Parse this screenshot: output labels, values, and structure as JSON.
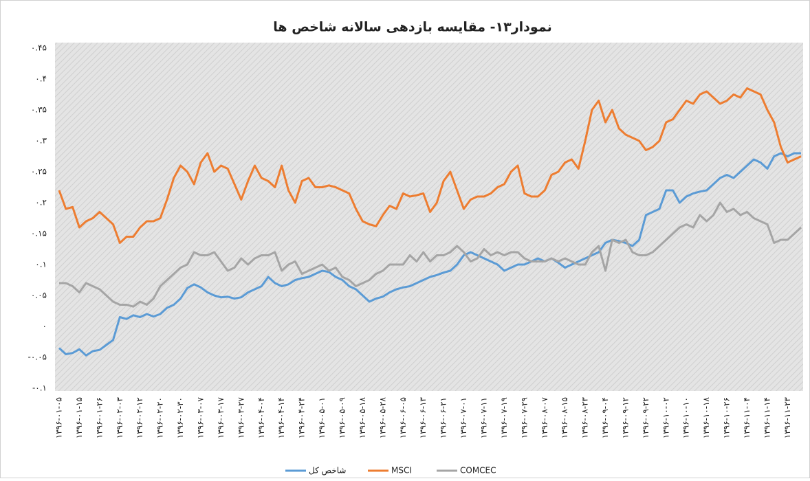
{
  "chart_data": {
    "type": "line",
    "title": "نمودار۱۳- مقایسه بازدهی سالانه شاخص ها",
    "categories": [
      "۱۳۹۶-۰۱-۰۵",
      null,
      null,
      "۱۳۹۶-۰۱-۱۵",
      null,
      null,
      "۱۳۹۶-۰۱-۲۶",
      null,
      null,
      "۱۳۹۶-۰۲-۰۳",
      null,
      null,
      "۱۳۹۶-۰۲-۱۲",
      null,
      null,
      "۱۳۹۶-۰۲-۲۰",
      null,
      null,
      "۱۳۹۶-۰۲-۳۰",
      null,
      null,
      "۱۳۹۶-۰۳-۰۷",
      null,
      null,
      "۱۳۹۶-۰۳-۱۷",
      null,
      null,
      "۱۳۹۶-۰۳-۲۷",
      null,
      null,
      "۱۳۹۶-۰۴-۰۴",
      null,
      null,
      "۱۳۹۶-۰۴-۱۴",
      null,
      null,
      "۱۳۹۶-۰۴-۲۴",
      null,
      null,
      "۱۳۹۶-۰۵-۰۱",
      null,
      null,
      "۱۳۹۶-۰۵-۰۹",
      null,
      null,
      "۱۳۹۶-۰۵-۱۸",
      null,
      null,
      "۱۳۹۶-۰۵-۲۸",
      null,
      null,
      "۱۳۹۶-۰۶-۰۵",
      null,
      null,
      "۱۳۹۶-۰۶-۱۳",
      null,
      null,
      "۱۳۹۶-۰۶-۲۱",
      null,
      null,
      "۱۳۹۶-۰۷-۰۱",
      null,
      null,
      "۱۳۹۶-۰۷-۱۱",
      null,
      null,
      "۱۳۹۶-۰۷-۱۹",
      null,
      null,
      "۱۳۹۶-۰۷-۲۹",
      null,
      null,
      "۱۳۹۶-۰۸-۰۷",
      null,
      null,
      "۱۳۹۶-۰۸-۱۵",
      null,
      null,
      "۱۳۹۶-۰۸-۲۳",
      null,
      null,
      "۱۳۹۶-۰۹-۰۴",
      null,
      null,
      "۱۳۹۶-۰۹-۱۲",
      null,
      null,
      "۱۳۹۶-۰۹-۲۲",
      null,
      null,
      "۱۳۹۶-۱۰-۰۲",
      null,
      null,
      "۱۳۹۶-۱۰-۱۰",
      null,
      null,
      "۱۳۹۶-۱۰-۱۸",
      null,
      null,
      "۱۳۹۶-۱۰-۲۶",
      null,
      null,
      "۱۳۹۶-۱۱-۰۴",
      null,
      null,
      "۱۳۹۶-۱۱-۱۴",
      null,
      null,
      "۱۳۹۶-۱۱-۲۳",
      null,
      null
    ],
    "series": [
      {
        "name": "شاخص کل",
        "color": "#5b9bd5",
        "values": [
          -0.035,
          -0.045,
          -0.043,
          -0.037,
          -0.047,
          -0.04,
          -0.038,
          -0.03,
          -0.022,
          0.015,
          0.012,
          0.018,
          0.015,
          0.02,
          0.016,
          0.02,
          0.03,
          0.035,
          0.045,
          0.062,
          0.068,
          0.063,
          0.055,
          0.05,
          0.047,
          0.048,
          0.045,
          0.047,
          0.055,
          0.06,
          0.065,
          0.08,
          0.07,
          0.065,
          0.068,
          0.075,
          0.078,
          0.08,
          0.085,
          0.09,
          0.088,
          0.08,
          0.075,
          0.065,
          0.06,
          0.05,
          0.04,
          0.045,
          0.048,
          0.055,
          0.06,
          0.063,
          0.065,
          0.07,
          0.075,
          0.08,
          0.083,
          0.087,
          0.09,
          0.1,
          0.115,
          0.12,
          0.115,
          0.11,
          0.105,
          0.1,
          0.09,
          0.095,
          0.1,
          0.1,
          0.105,
          0.11,
          0.105,
          0.11,
          0.103,
          0.095,
          0.1,
          0.105,
          0.11,
          0.115,
          0.12,
          0.135,
          0.14,
          0.138,
          0.135,
          0.13,
          0.14,
          0.18,
          0.185,
          0.19,
          0.22,
          0.22,
          0.2,
          0.21,
          0.215,
          0.218,
          0.22,
          0.23,
          0.24,
          0.245,
          0.24,
          0.25,
          0.26,
          0.27,
          0.265,
          0.255,
          0.275,
          0.28,
          0.275,
          0.28,
          0.28
        ]
      },
      {
        "name": "MSCI",
        "color": "#ed7d31",
        "values": [
          0.22,
          0.19,
          0.193,
          0.16,
          0.17,
          0.175,
          0.185,
          0.175,
          0.165,
          0.135,
          0.145,
          0.145,
          0.16,
          0.17,
          0.17,
          0.175,
          0.205,
          0.24,
          0.26,
          0.25,
          0.23,
          0.265,
          0.28,
          0.25,
          0.26,
          0.255,
          0.23,
          0.205,
          0.235,
          0.26,
          0.24,
          0.235,
          0.225,
          0.26,
          0.22,
          0.2,
          0.235,
          0.24,
          0.225,
          0.225,
          0.228,
          0.225,
          0.22,
          0.215,
          0.19,
          0.17,
          0.165,
          0.162,
          0.18,
          0.195,
          0.19,
          0.215,
          0.21,
          0.212,
          0.215,
          0.185,
          0.2,
          0.235,
          0.25,
          0.22,
          0.19,
          0.205,
          0.21,
          0.21,
          0.215,
          0.225,
          0.23,
          0.25,
          0.26,
          0.215,
          0.21,
          0.21,
          0.22,
          0.245,
          0.25,
          0.265,
          0.27,
          0.255,
          0.3,
          0.35,
          0.365,
          0.33,
          0.35,
          0.32,
          0.31,
          0.305,
          0.3,
          0.285,
          0.29,
          0.3,
          0.33,
          0.335,
          0.35,
          0.365,
          0.36,
          0.375,
          0.38,
          0.37,
          0.36,
          0.365,
          0.375,
          0.37,
          0.385,
          0.38,
          0.375,
          0.35,
          0.33,
          0.29,
          0.265,
          0.27,
          0.275
        ]
      },
      {
        "name": "COMCEC",
        "color": "#a5a5a5",
        "values": [
          0.07,
          0.07,
          0.065,
          0.055,
          0.07,
          0.065,
          0.06,
          0.05,
          0.04,
          0.035,
          0.035,
          0.032,
          0.04,
          0.035,
          0.045,
          0.065,
          0.075,
          0.085,
          0.095,
          0.1,
          0.12,
          0.115,
          0.115,
          0.12,
          0.105,
          0.09,
          0.095,
          0.11,
          0.1,
          0.11,
          0.115,
          0.115,
          0.12,
          0.09,
          0.1,
          0.105,
          0.085,
          0.09,
          0.095,
          0.1,
          0.09,
          0.095,
          0.08,
          0.075,
          0.065,
          0.07,
          0.075,
          0.085,
          0.09,
          0.1,
          0.1,
          0.1,
          0.115,
          0.105,
          0.12,
          0.105,
          0.115,
          0.115,
          0.12,
          0.13,
          0.12,
          0.105,
          0.11,
          0.125,
          0.115,
          0.12,
          0.115,
          0.12,
          0.12,
          0.11,
          0.105,
          0.105,
          0.105,
          0.11,
          0.105,
          0.11,
          0.105,
          0.1,
          0.1,
          0.12,
          0.13,
          0.09,
          0.14,
          0.135,
          0.14,
          0.12,
          0.115,
          0.115,
          0.12,
          0.13,
          0.14,
          0.15,
          0.16,
          0.165,
          0.16,
          0.18,
          0.17,
          0.18,
          0.2,
          0.185,
          0.19,
          0.18,
          0.185,
          0.175,
          0.17,
          0.165,
          0.135,
          0.14,
          0.14,
          0.15,
          0.16
        ]
      }
    ],
    "ylim": [
      -0.1,
      0.45
    ],
    "yticks": [
      {
        "value": -0.1,
        "label": "-۰.۱"
      },
      {
        "value": -0.05,
        "label": "-۰.۰۵"
      },
      {
        "value": 0,
        "label": "۰"
      },
      {
        "value": 0.05,
        "label": "۰.۰۵"
      },
      {
        "value": 0.1,
        "label": "۰.۱"
      },
      {
        "value": 0.15,
        "label": "۰.۱۵"
      },
      {
        "value": 0.2,
        "label": "۰.۲"
      },
      {
        "value": 0.25,
        "label": "۰.۲۵"
      },
      {
        "value": 0.3,
        "label": "۰.۳"
      },
      {
        "value": 0.35,
        "label": "۰.۳۵"
      },
      {
        "value": 0.4,
        "label": "۰.۴"
      },
      {
        "value": 0.45,
        "label": "۰.۴۵"
      }
    ],
    "grid": false,
    "legend": "bottom"
  }
}
